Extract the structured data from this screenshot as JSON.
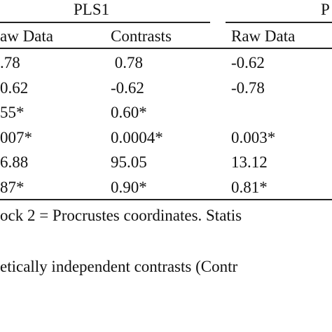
{
  "table": {
    "groups": [
      "PLS1",
      "P"
    ],
    "columns": [
      "aw Data",
      "Contrasts",
      "Raw Data"
    ],
    "rows": [
      [
        ".78",
        " 0.78",
        "-0.62"
      ],
      [
        "0.62",
        "-0.62",
        "-0.78"
      ],
      [
        "55*",
        "0.60*"
      ],
      [
        "007*",
        "0.0004*",
        "0.003*"
      ],
      [
        "6.88",
        "95.05",
        "13.12"
      ],
      [
        "87*",
        "0.90*",
        "0.81*"
      ]
    ]
  },
  "notes": [
    "ock 2 = Procrustes coordinates. Statis",
    "etically independent contrasts (Contr"
  ]
}
